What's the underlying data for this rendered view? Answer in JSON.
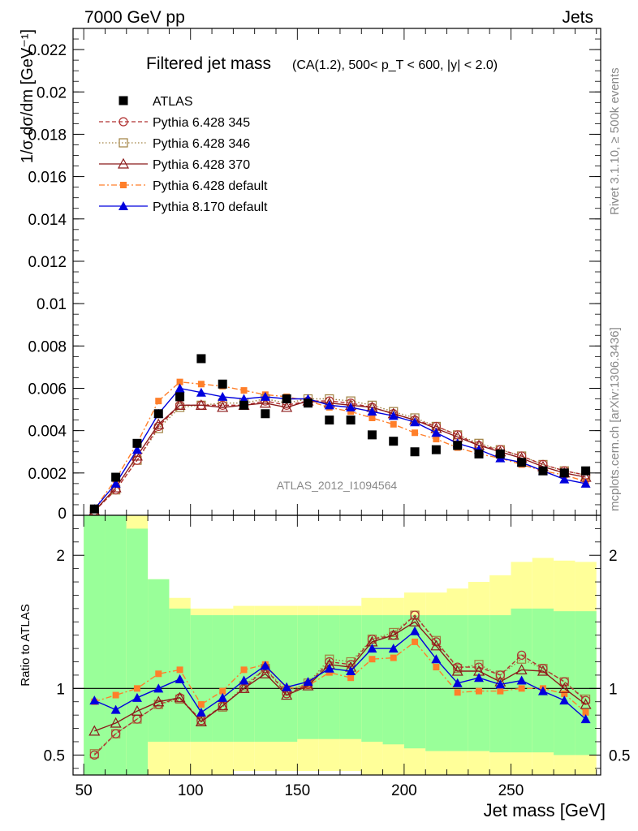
{
  "header": {
    "energy_label": "7000 GeV pp",
    "category_label": "Jets"
  },
  "side_labels": {
    "rivet": "Rivet 3.1.10, ≥ 500k events",
    "mcplots": "mcplots.cern.ch [arXiv:1306.3436]"
  },
  "colors": {
    "atlas": "#000000",
    "p6_345": "#b03030",
    "p6_346": "#a08040",
    "p6_370": "#8b1a1a",
    "p6_default": "#ff7f2a",
    "p8_default": "#0000dd",
    "band_inner": "#99ff99",
    "band_outer": "#ffff99"
  },
  "chart_data": [
    {
      "type": "scatter",
      "title": "Filtered jet mass",
      "title_detail": "(CA(1.2), 500< p_T < 600, |y| < 2.0)",
      "ylabel": "1/σ dσ/dm [GeV⁻¹]",
      "xlabel": "",
      "watermark": "ATLAS_2012_I1094564",
      "xlim": [
        45,
        292
      ],
      "ylim": [
        0,
        0.023
      ],
      "yticks": [
        0.002,
        0.004,
        0.006,
        0.008,
        0.01,
        0.012,
        0.014,
        0.016,
        0.018,
        0.02,
        0.022
      ],
      "ytick_labels": [
        "0.002",
        "0.004",
        "0.006",
        "0.008",
        "0.01",
        "0.012",
        "0.014",
        "0.016",
        "0.018",
        "0.02",
        "0.022"
      ],
      "ytick_zero_label": "0",
      "legend_position": "top-left",
      "x": [
        55,
        65,
        75,
        85,
        95,
        105,
        115,
        125,
        135,
        145,
        155,
        165,
        175,
        185,
        195,
        205,
        215,
        225,
        235,
        245,
        255,
        265,
        275,
        285
      ],
      "series": [
        {
          "name": "ATLAS",
          "key": "atlas",
          "marker": "square",
          "line": "none",
          "values": [
            0.0003,
            0.0018,
            0.0034,
            0.0048,
            0.0056,
            0.0074,
            0.0062,
            0.0052,
            0.0048,
            0.0055,
            0.0053,
            0.0045,
            0.0045,
            0.0038,
            0.0035,
            0.003,
            0.0031,
            0.0033,
            0.0029,
            0.0029,
            0.0025,
            0.0021,
            0.002,
            0.0021
          ]
        },
        {
          "name": "Pythia 6.428 345",
          "key": "p6_345",
          "marker": "circle-open",
          "line": "dashed",
          "values": [
            0.0002,
            0.0012,
            0.0026,
            0.0042,
            0.0052,
            0.0052,
            0.0052,
            0.0052,
            0.0054,
            0.0052,
            0.0054,
            0.0054,
            0.0053,
            0.0051,
            0.0048,
            0.0045,
            0.0042,
            0.0038,
            0.0033,
            0.0031,
            0.0028,
            0.0024,
            0.0021,
            0.0019
          ]
        },
        {
          "name": "Pythia 6.428 346",
          "key": "p6_346",
          "marker": "square-open",
          "line": "dotted",
          "values": [
            0.0002,
            0.0012,
            0.0026,
            0.0041,
            0.0051,
            0.0052,
            0.0053,
            0.0053,
            0.0055,
            0.0053,
            0.0055,
            0.0055,
            0.0054,
            0.0052,
            0.0049,
            0.0046,
            0.0042,
            0.0038,
            0.0034,
            0.0031,
            0.0028,
            0.0024,
            0.0021,
            0.0019
          ]
        },
        {
          "name": "Pythia 6.428 370",
          "key": "p6_370",
          "marker": "triangle-open",
          "line": "solid",
          "values": [
            0.0002,
            0.0013,
            0.0028,
            0.0043,
            0.0052,
            0.0052,
            0.0051,
            0.0052,
            0.0053,
            0.0051,
            0.0054,
            0.0053,
            0.0052,
            0.0051,
            0.0048,
            0.0045,
            0.0041,
            0.0037,
            0.0033,
            0.003,
            0.0027,
            0.0023,
            0.002,
            0.0018
          ]
        },
        {
          "name": "Pythia 6.428 default",
          "key": "p6_default",
          "marker": "square-small",
          "line": "dashdot",
          "values": [
            0.0003,
            0.0017,
            0.0034,
            0.0054,
            0.0063,
            0.0062,
            0.0061,
            0.0059,
            0.0057,
            0.0056,
            0.0054,
            0.0051,
            0.0049,
            0.0046,
            0.0043,
            0.0039,
            0.0036,
            0.0032,
            0.0029,
            0.0027,
            0.0024,
            0.0021,
            0.0019,
            0.0016
          ]
        },
        {
          "name": "Pythia 8.170 default",
          "key": "p8_default",
          "marker": "triangle",
          "line": "solid",
          "values": [
            0.0003,
            0.0015,
            0.0031,
            0.0048,
            0.006,
            0.0058,
            0.0056,
            0.0055,
            0.0056,
            0.0055,
            0.0055,
            0.0052,
            0.0051,
            0.0049,
            0.0047,
            0.0044,
            0.0039,
            0.0034,
            0.0031,
            0.0027,
            0.0025,
            0.0021,
            0.0017,
            0.0015
          ]
        }
      ]
    },
    {
      "type": "line",
      "title": "",
      "ylabel": "Ratio to ATLAS",
      "xlabel": "Jet mass [GeV]",
      "xlim": [
        45,
        292
      ],
      "ylim": [
        0.35,
        2.3
      ],
      "xticks": [
        50,
        100,
        150,
        200,
        250
      ],
      "xtick_labels": [
        "50",
        "100",
        "150",
        "200",
        "250"
      ],
      "yticks": [
        0.5,
        1,
        2
      ],
      "ytick_labels": [
        "0.5",
        "1",
        "2"
      ],
      "reference_line": 1,
      "bins": [
        [
          50,
          60
        ],
        [
          60,
          70
        ],
        [
          70,
          80
        ],
        [
          80,
          90
        ],
        [
          90,
          100
        ],
        [
          100,
          110
        ],
        [
          110,
          120
        ],
        [
          120,
          130
        ],
        [
          130,
          140
        ],
        [
          140,
          150
        ],
        [
          150,
          160
        ],
        [
          160,
          170
        ],
        [
          170,
          180
        ],
        [
          180,
          190
        ],
        [
          190,
          200
        ],
        [
          200,
          210
        ],
        [
          210,
          220
        ],
        [
          220,
          230
        ],
        [
          230,
          240
        ],
        [
          240,
          250
        ],
        [
          250,
          260
        ],
        [
          260,
          270
        ],
        [
          270,
          280
        ],
        [
          280,
          290
        ]
      ],
      "band_inner": {
        "low": [
          0.35,
          0.35,
          0.35,
          0.6,
          0.6,
          0.6,
          0.6,
          0.6,
          0.6,
          0.6,
          0.62,
          0.62,
          0.62,
          0.6,
          0.58,
          0.55,
          0.53,
          0.53,
          0.53,
          0.52,
          0.52,
          0.52,
          0.5,
          0.5
        ],
        "high": [
          2.3,
          2.3,
          2.2,
          1.82,
          1.6,
          1.55,
          1.55,
          1.55,
          1.55,
          1.55,
          1.55,
          1.55,
          1.55,
          1.55,
          1.55,
          1.55,
          1.55,
          1.55,
          1.55,
          1.55,
          1.6,
          1.6,
          1.58,
          1.58
        ]
      },
      "band_outer": {
        "low": [
          0.35,
          0.35,
          0.35,
          0.35,
          0.35,
          0.35,
          0.35,
          0.38,
          0.38,
          0.38,
          0.38,
          0.38,
          0.38,
          0.35,
          0.35,
          0.35,
          0.35,
          0.35,
          0.35,
          0.35,
          0.35,
          0.35,
          0.35,
          0.35
        ],
        "high": [
          2.3,
          2.3,
          2.3,
          1.82,
          1.68,
          1.6,
          1.6,
          1.62,
          1.62,
          1.62,
          1.62,
          1.62,
          1.62,
          1.68,
          1.68,
          1.72,
          1.72,
          1.75,
          1.8,
          1.85,
          1.95,
          1.98,
          1.96,
          1.95
        ]
      },
      "series": [
        {
          "name": "Pythia 6.428 345",
          "key": "p6_345",
          "values": [
            0.5,
            0.66,
            0.77,
            0.88,
            0.93,
            0.76,
            0.87,
            1.0,
            1.15,
            0.96,
            1.03,
            1.2,
            1.18,
            1.37,
            1.4,
            1.55,
            1.35,
            1.16,
            1.16,
            1.1,
            1.25,
            1.15,
            1.05,
            0.91
          ]
        },
        {
          "name": "Pythia 6.428 346",
          "key": "p6_346",
          "values": [
            0.51,
            0.66,
            0.77,
            0.88,
            0.92,
            0.76,
            0.86,
            1.02,
            1.15,
            0.98,
            1.04,
            1.22,
            1.2,
            1.37,
            1.42,
            1.55,
            1.36,
            1.15,
            1.18,
            1.1,
            1.22,
            1.15,
            1.05,
            0.92
          ]
        },
        {
          "name": "Pythia 6.428 370",
          "key": "p6_370",
          "values": [
            0.68,
            0.74,
            0.83,
            0.9,
            0.93,
            0.75,
            0.87,
            1.0,
            1.11,
            0.95,
            1.02,
            1.18,
            1.16,
            1.35,
            1.4,
            1.5,
            1.32,
            1.13,
            1.13,
            1.05,
            1.14,
            1.13,
            1.0,
            0.88
          ]
        },
        {
          "name": "Pythia 6.428 default",
          "key": "p6_default",
          "values": [
            0.9,
            0.95,
            1.0,
            1.11,
            1.14,
            0.88,
            0.98,
            1.14,
            1.18,
            1.0,
            1.02,
            1.12,
            1.08,
            1.22,
            1.23,
            1.35,
            1.16,
            0.97,
            0.98,
            0.98,
            1.0,
            1.0,
            0.96,
            0.82
          ]
        },
        {
          "name": "Pythia 8.170 default",
          "key": "p8_default",
          "values": [
            0.91,
            0.84,
            0.93,
            1.0,
            1.07,
            0.82,
            0.93,
            1.06,
            1.17,
            1.01,
            1.05,
            1.15,
            1.13,
            1.3,
            1.3,
            1.43,
            1.22,
            1.04,
            1.08,
            1.03,
            1.06,
            0.98,
            0.91,
            0.77
          ]
        }
      ]
    }
  ]
}
